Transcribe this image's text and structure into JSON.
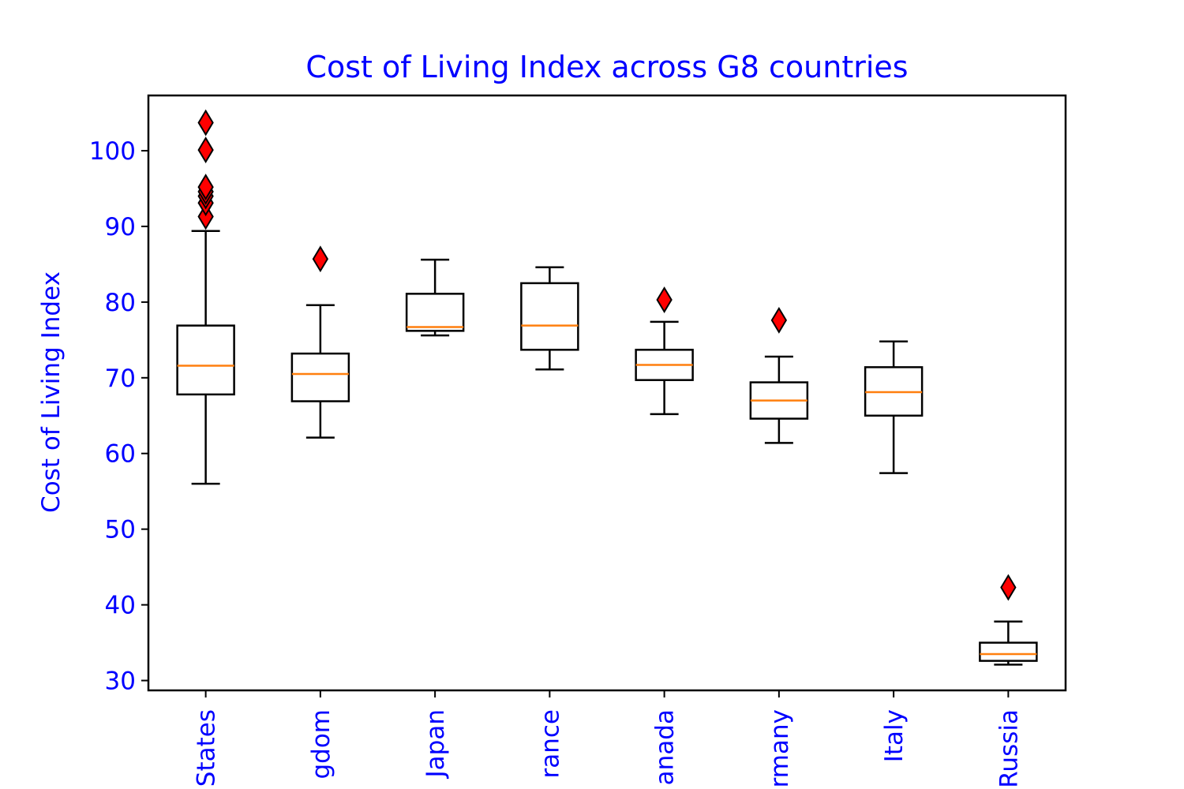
{
  "chart_data": {
    "type": "box",
    "title": "Cost of Living Index across G8 countries",
    "xlabel": "",
    "ylabel": "Cost of Living Index",
    "ylim": [
      28.7,
      107.3
    ],
    "yticks": [
      30,
      40,
      50,
      60,
      70,
      80,
      90,
      100
    ],
    "grid": false,
    "colors": {
      "text": "#0000ff",
      "box": "#000000",
      "median": "#ff7f0e",
      "outlier_fill": "#ff0000",
      "outlier_edge": "#000000"
    },
    "categories": [
      "United States",
      "United Kingdom",
      "Japan",
      "France",
      "Canada",
      "Germany",
      "Italy",
      "Russia"
    ],
    "tick_labels_visible": [
      "States",
      "gdom",
      "Japan",
      "rance",
      "anada",
      "rmany",
      "Italy",
      "Russia"
    ],
    "boxes": [
      {
        "category": "United States",
        "whisker_low": 56.0,
        "q1": 67.8,
        "median": 71.6,
        "q3": 76.9,
        "whisker_high": 89.4,
        "outliers": [
          91.3,
          93.1,
          94.0,
          94.6,
          95.2,
          100.1,
          103.7
        ]
      },
      {
        "category": "United Kingdom",
        "whisker_low": 62.1,
        "q1": 66.9,
        "median": 70.5,
        "q3": 73.2,
        "whisker_high": 79.6,
        "outliers": [
          85.7
        ]
      },
      {
        "category": "Japan",
        "whisker_low": 75.6,
        "q1": 76.2,
        "median": 76.7,
        "q3": 81.1,
        "whisker_high": 85.6,
        "outliers": []
      },
      {
        "category": "France",
        "whisker_low": 71.1,
        "q1": 73.7,
        "median": 76.9,
        "q3": 82.5,
        "whisker_high": 84.6,
        "outliers": []
      },
      {
        "category": "Canada",
        "whisker_low": 65.2,
        "q1": 69.7,
        "median": 71.7,
        "q3": 73.7,
        "whisker_high": 77.4,
        "outliers": [
          80.3
        ]
      },
      {
        "category": "Germany",
        "whisker_low": 61.4,
        "q1": 64.6,
        "median": 67.0,
        "q3": 69.4,
        "whisker_high": 72.8,
        "outliers": [
          77.6
        ]
      },
      {
        "category": "Italy",
        "whisker_low": 57.4,
        "q1": 65.0,
        "median": 68.1,
        "q3": 71.4,
        "whisker_high": 74.8,
        "outliers": []
      },
      {
        "category": "Russia",
        "whisker_low": 32.1,
        "q1": 32.6,
        "median": 33.5,
        "q3": 35.0,
        "whisker_high": 37.8,
        "outliers": [
          42.3
        ]
      }
    ]
  }
}
